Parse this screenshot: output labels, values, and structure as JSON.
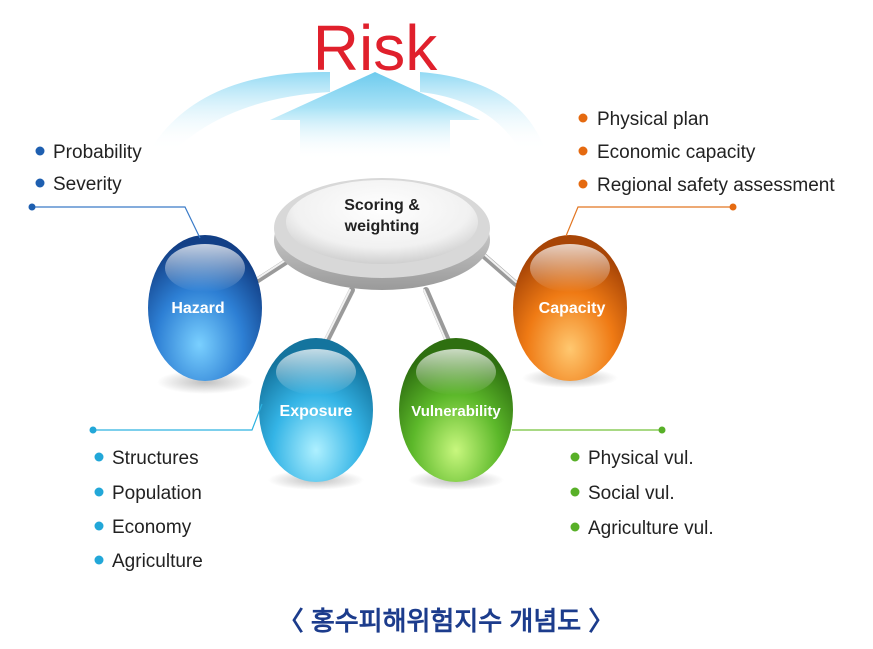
{
  "title": "Risk",
  "center": {
    "line1": "Scoring &",
    "line2": "weighting"
  },
  "nodes": {
    "hazard": {
      "label": "Hazard",
      "items": [
        "Probability",
        "Severity"
      ]
    },
    "exposure": {
      "label": "Exposure",
      "items": [
        "Structures",
        "Population",
        "Economy",
        "Agriculture"
      ]
    },
    "vulnerability": {
      "label": "Vulnerability",
      "items": [
        "Physical vul.",
        "Social vul.",
        "Agriculture vul."
      ]
    },
    "capacity": {
      "label": "Capacity",
      "items": [
        "Physical plan",
        "Economic capacity",
        "Regional safety assessment"
      ]
    }
  },
  "caption": "〈 홍수피해위험지수 개념도 〉",
  "colors": {
    "title": "#e0202c",
    "hazard": "#1e5fb0",
    "exposure": "#22a7d8",
    "vulnerability": "#58b028",
    "capacity": "#e56a10",
    "caption": "#1c3c8c"
  }
}
